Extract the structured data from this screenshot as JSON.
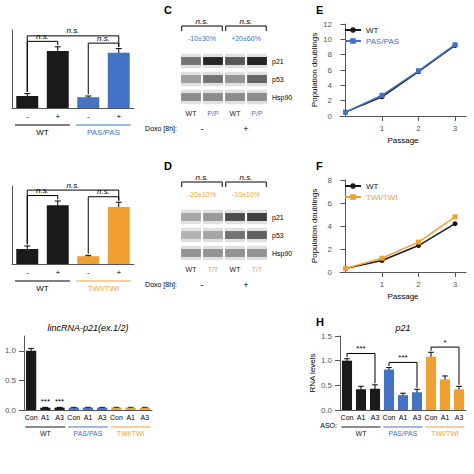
{
  "chart_data": [
    {
      "type": "bar",
      "categories": [
        "-",
        "+",
        "-",
        "+"
      ],
      "values": [
        2.0,
        9.5,
        1.8,
        9.2
      ],
      "errors": [
        0.4,
        0.7,
        0.2,
        0.7
      ],
      "colors": [
        "#1a1a1a",
        "#1a1a1a",
        "#4472c4",
        "#4472c4"
      ],
      "groups": [
        {
          "name": "WT",
          "color": "#000000"
        },
        {
          "name": "PAS/PAS",
          "color": "#4472c4"
        }
      ],
      "annotations": [
        {
          "text": "n.s.",
          "from": 0,
          "to": 1
        },
        {
          "text": "n.s.",
          "from": 2,
          "to": 3
        },
        {
          "text": "n.s.",
          "from": 0,
          "to": 3
        }
      ],
      "ylim": [
        0,
        13
      ],
      "tick_labels": "x",
      "grid": false
    },
    {
      "type": "bar",
      "categories": [
        "-",
        "+",
        "-",
        "+"
      ],
      "values": [
        2.5,
        9.8,
        1.3,
        9.5
      ],
      "errors": [
        0.5,
        0.7,
        0.15,
        0.8
      ],
      "colors": [
        "#1a1a1a",
        "#1a1a1a",
        "#f0a030",
        "#f0a030"
      ],
      "groups": [
        {
          "name": "WT",
          "color": "#000000"
        },
        {
          "name": "TWI/TWI",
          "color": "#f0a030"
        }
      ],
      "annotations": [
        {
          "text": "n.s.",
          "from": 0,
          "to": 1
        },
        {
          "text": "n.s.",
          "from": 2,
          "to": 3
        },
        {
          "text": "n.s.",
          "from": 0,
          "to": 3
        }
      ],
      "ylim": [
        0,
        13
      ],
      "tick_labels": "x",
      "grid": false
    },
    {
      "type": "bar",
      "title": "lincRNA-p21(ex.1/2)",
      "categories": [
        "Con",
        "A1",
        "A3",
        "Con",
        "A1",
        "A3",
        "Con",
        "A1",
        "A3"
      ],
      "values": [
        1.0,
        0.04,
        0.04,
        0.04,
        0.04,
        0.04,
        0.04,
        0.04,
        0.04
      ],
      "errors": [
        0.04,
        0.005,
        0.005,
        0.005,
        0.005,
        0.005,
        0.005,
        0.005,
        0.005
      ],
      "colors": [
        "#1a1a1a",
        "#1a1a1a",
        "#1a1a1a",
        "#4472c4",
        "#4472c4",
        "#4472c4",
        "#f0a030",
        "#f0a030",
        "#f0a030"
      ],
      "groups": [
        {
          "name": "WT",
          "color": "#1a1a1a"
        },
        {
          "name": "PAS/PAS",
          "color": "#4472c4"
        },
        {
          "name": "TWI/TWI",
          "color": "#f0a030"
        }
      ],
      "annotations": [
        {
          "text": "***",
          "at": 1
        },
        {
          "text": "***",
          "at": 2
        }
      ],
      "ylim": [
        0,
        1.25
      ],
      "yticks": [
        {
          "value": 0,
          "label": "0.0"
        },
        0.5,
        {
          "value": 1.0,
          "label": "1.0"
        }
      ],
      "grid": false
    },
    {
      "type": "heatmap",
      "panel_label": "C",
      "categories": [
        "WT",
        "P/P",
        "WT",
        "P/P"
      ],
      "category_colors": [
        "#1a1a1a",
        "#4472c4",
        "#1a1a1a",
        "#4472c4"
      ],
      "rows": [
        "p21",
        "p53",
        "Hsp90"
      ],
      "cells": [
        [
          0.55,
          0.85,
          0.65,
          0.85
        ],
        [
          0.38,
          0.55,
          0.42,
          0.6
        ],
        [
          0.45,
          0.45,
          0.45,
          0.45
        ]
      ],
      "treatment_label": "Doxo [8h]:",
      "treatment_values": [
        "-",
        "+"
      ],
      "annotations": [
        {
          "text": "n.s.",
          "from": 0,
          "to": 1,
          "subtext": "-10±30%",
          "subtext_color": "#4472c4"
        },
        {
          "text": "n.s.",
          "from": 2,
          "to": 3,
          "subtext": "+20±60%",
          "subtext_color": "#4472c4"
        }
      ]
    },
    {
      "type": "heatmap",
      "panel_label": "D",
      "categories": [
        "WT",
        "T/T",
        "WT",
        "T/T"
      ],
      "category_colors": [
        "#1a1a1a",
        "#f0a030",
        "#1a1a1a",
        "#f0a030"
      ],
      "rows": [
        "p21",
        "p53",
        "Hsp90"
      ],
      "cells": [
        [
          0.35,
          0.4,
          0.7,
          0.75
        ],
        [
          0.3,
          0.35,
          0.55,
          0.62
        ],
        [
          0.42,
          0.42,
          0.42,
          0.42
        ]
      ],
      "treatment_label": "Doxo [8h]:",
      "treatment_values": [
        "-",
        "+"
      ],
      "annotations": [
        {
          "text": "n.s.",
          "from": 0,
          "to": 1,
          "subtext": "-20±10%",
          "subtext_color": "#f0a030"
        },
        {
          "text": "n.s.",
          "from": 2,
          "to": 3,
          "subtext": "-10±10%",
          "subtext_color": "#f0a030"
        }
      ]
    },
    {
      "type": "line",
      "panel_label": "E",
      "xlabel": "Passage",
      "ylabel": "Population doublings",
      "series": [
        {
          "name": "WT",
          "color": "#1a1a1a",
          "marker": "circle",
          "x": [
            0,
            1,
            2,
            3
          ],
          "values": [
            0.5,
            2.5,
            5.8,
            9.2
          ]
        },
        {
          "name": "PAS/PAS",
          "color": "#4472c4",
          "marker": "square",
          "x": [
            0,
            1,
            2,
            3
          ],
          "values": [
            0.5,
            2.7,
            5.9,
            9.3
          ]
        }
      ],
      "xlim": [
        -0.15,
        3.3
      ],
      "xticks": [
        1,
        2,
        3
      ],
      "ylim": [
        0,
        12
      ],
      "yticks": [
        0,
        2,
        4,
        6,
        8,
        10,
        12
      ],
      "legend": "upper left",
      "grid": false
    },
    {
      "type": "line",
      "panel_label": "F",
      "xlabel": "Passage",
      "ylabel": "Population doublings",
      "series": [
        {
          "name": "WT",
          "color": "#1a1a1a",
          "marker": "circle",
          "x": [
            0,
            1,
            2,
            3
          ],
          "values": [
            0.3,
            1.0,
            2.3,
            4.2
          ]
        },
        {
          "name": "TWI/TWI",
          "color": "#f0a030",
          "marker": "square",
          "x": [
            0,
            1,
            2,
            3
          ],
          "values": [
            0.3,
            1.2,
            2.6,
            4.8
          ]
        }
      ],
      "xlim": [
        -0.15,
        3.3
      ],
      "xticks": [
        1,
        2,
        3
      ],
      "ylim": [
        0,
        8
      ],
      "yticks": [
        0,
        2,
        4,
        6,
        8
      ],
      "legend": "upper left",
      "grid": false
    },
    {
      "type": "bar",
      "panel_label": "H",
      "title": "p21",
      "xlabel": "ASO:",
      "ylabel": "RNA levels",
      "categories": [
        "Con",
        "A1",
        "A3",
        "Con",
        "A1",
        "A3",
        "Con",
        "A1",
        "A3"
      ],
      "values": [
        1.0,
        0.42,
        0.43,
        0.82,
        0.3,
        0.36,
        1.08,
        0.62,
        0.42
      ],
      "errors": [
        0.04,
        0.06,
        0.08,
        0.04,
        0.04,
        0.06,
        0.09,
        0.07,
        0.06
      ],
      "colors": [
        "#1a1a1a",
        "#1a1a1a",
        "#1a1a1a",
        "#4472c4",
        "#4472c4",
        "#4472c4",
        "#f0a030",
        "#f0a030",
        "#f0a030"
      ],
      "groups": [
        {
          "name": "WT",
          "color": "#1a1a1a"
        },
        {
          "name": "PAS/PAS",
          "color": "#4472c4"
        },
        {
          "name": "TWI/TWI",
          "color": "#f0a030"
        }
      ],
      "annotations": [
        {
          "text": "***",
          "from": 0,
          "to": 2
        },
        {
          "text": "***",
          "from": 3,
          "to": 5
        },
        {
          "text": "*",
          "from": 6,
          "to": 8
        }
      ],
      "ylim": [
        0,
        1.5
      ],
      "yticks": [
        {
          "value": 0,
          "label": "0.0"
        },
        0.5,
        {
          "value": 1.0,
          "label": "1.0"
        },
        1.5
      ],
      "grid": false
    }
  ]
}
